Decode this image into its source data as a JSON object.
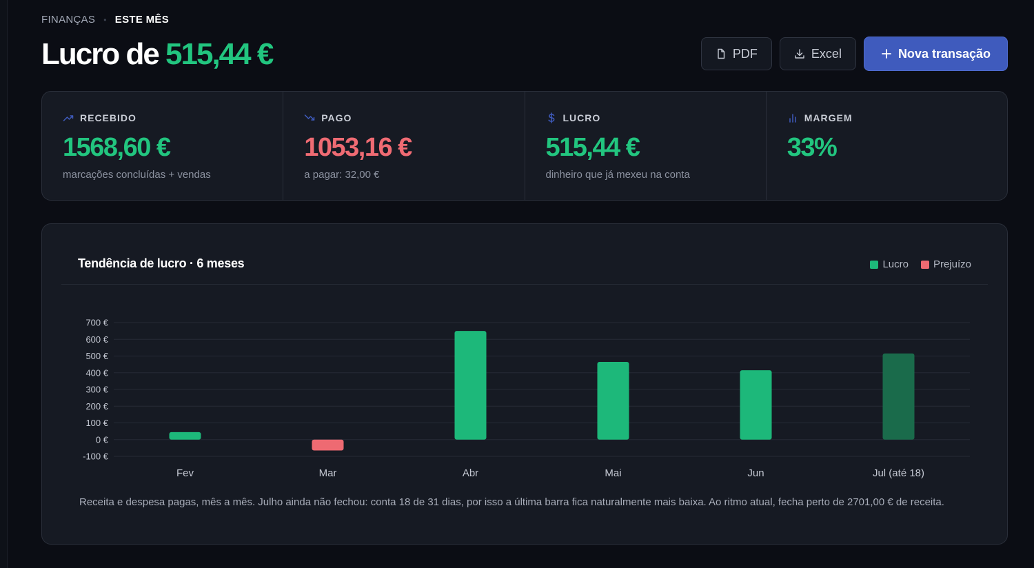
{
  "breadcrumb": {
    "section": "FINANÇAS",
    "period": "ESTE MÊS"
  },
  "headline": {
    "prefix": "Lucro de",
    "amount": "515,44 €"
  },
  "actions": {
    "pdf": "PDF",
    "excel": "Excel",
    "new": "Nova transação"
  },
  "stats": [
    {
      "label": "RECEBIDO",
      "value": "1568,60 €",
      "sub": "marcações concluídas + vendas",
      "icon": "trending-up-icon",
      "color": "#22c57f",
      "icon_color": "#3f5bbd"
    },
    {
      "label": "PAGO",
      "value": "1053,16 €",
      "sub": "a pagar: 32,00 €",
      "icon": "trending-down-icon",
      "color": "#ef6b73",
      "icon_color": "#3f5bbd"
    },
    {
      "label": "LUCRO",
      "value": "515,44 €",
      "sub": "dinheiro que já mexeu na conta",
      "icon": "dollar-icon",
      "color": "#22c57f",
      "icon_color": "#3f5bbd"
    },
    {
      "label": "MARGEM",
      "value": "33%",
      "sub": "",
      "icon": "bar-chart-icon",
      "color": "#22c57f",
      "icon_color": "#3f5bbd"
    }
  ],
  "chart_card": {
    "title": "Tendência de lucro · 6 meses",
    "legend": [
      {
        "name": "Lucro",
        "color": "#1db87a"
      },
      {
        "name": "Prejuízo",
        "color": "#ee6a72"
      }
    ],
    "caption": "Receita e despesa pagas, mês a mês. Julho ainda não fechou: conta 18 de 31 dias, por isso a última barra fica naturalmente mais baixa. Ao ritmo atual, fecha perto de 2701,00 € de receita."
  },
  "chart_data": {
    "type": "bar",
    "categories": [
      "Fev",
      "Mar",
      "Abr",
      "Mai",
      "Jun",
      "Jul (até 18)"
    ],
    "values": [
      45,
      -65,
      650,
      465,
      415,
      515.44
    ],
    "partial": [
      false,
      false,
      false,
      false,
      false,
      true
    ],
    "ylim": [
      -100,
      700
    ],
    "yticks": [
      -100,
      0,
      100,
      200,
      300,
      400,
      500,
      600,
      700
    ],
    "ytick_labels": [
      "-100 €",
      "0 €",
      "100 €",
      "200 €",
      "300 €",
      "400 €",
      "500 €",
      "600 €",
      "700 €"
    ],
    "grid": true,
    "colors": {
      "positive": "#1db87a",
      "negative": "#ee6a72",
      "partial": "#1a6b4b"
    }
  }
}
